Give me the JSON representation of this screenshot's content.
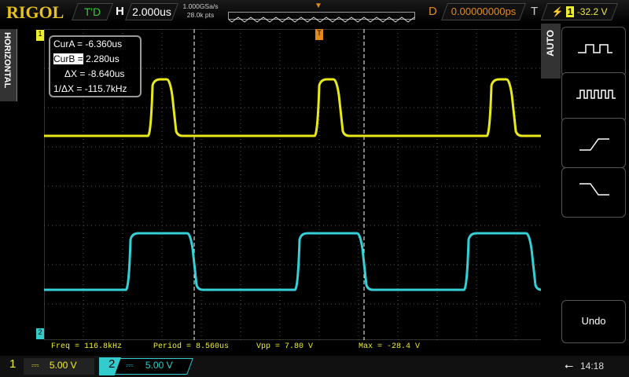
{
  "header": {
    "logo": "RIGOL",
    "run_state": "T'D",
    "h_label": "H",
    "timebase": "2.000us",
    "sample_rate": "1.000GSa/s",
    "memory_depth": "28.0k pts",
    "d_label": "D",
    "delay": "0.00000000ps",
    "t_label": "T",
    "trigger_source": "1",
    "trigger_level": "-32.2 V"
  },
  "side_tab": "HORIZONTAL",
  "cursors": {
    "cur_a_label": "CurA =",
    "cur_a": "-6.360us",
    "cur_b_label": "CurB =",
    "cur_b": "2.280us",
    "dx_label": "ΔX =",
    "dx": "-8.640us",
    "inv_dx_label": "1/ΔX =",
    "inv_dx": "-115.7kHz"
  },
  "measurements": [
    "Freq = 116.8kHz",
    "Period = 8.560us",
    "Vpp = 7.80 V",
    "Max = -28.4 V"
  ],
  "channels": [
    {
      "number": "1",
      "coupling": "⎓",
      "scale": "5.00 V",
      "color": "#e8e81a"
    },
    {
      "number": "2",
      "coupling": "⎓",
      "scale": "5.00 V",
      "color": "#33d0d8"
    }
  ],
  "menu": {
    "title": "AUTO",
    "buttons": [
      "single-period-icon",
      "multi-period-icon",
      "rising-edge-icon",
      "falling-edge-icon"
    ],
    "undo": "Undo"
  },
  "status": {
    "usb_icon": "usb-icon",
    "time": "14:18"
  }
}
